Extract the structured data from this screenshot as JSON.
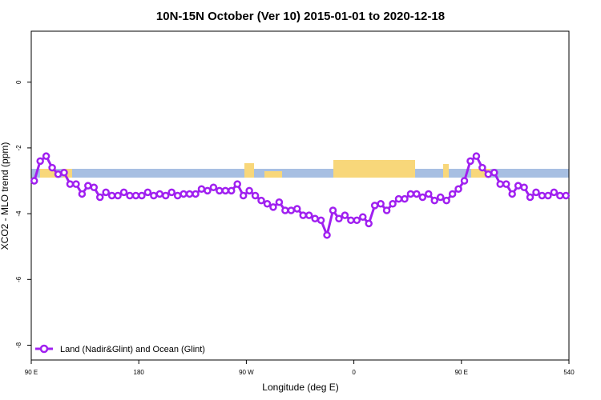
{
  "chart_data": {
    "type": "line",
    "title": "10N-15N October (Ver 10)   2015-01-01 to 2020-12-18",
    "x_label": "Longitude (deg E)",
    "y_label": "XCO2 - MLO trend (ppm)",
    "x": [
      92.5,
      97.5,
      102.5,
      107.5,
      112.5,
      117.5,
      122.5,
      127.5,
      132.5,
      137.5,
      142.5,
      147.5,
      152.5,
      157.5,
      162.5,
      167.5,
      172.5,
      177.5,
      182.5,
      187.5,
      192.5,
      197.5,
      202.5,
      207.5,
      212.5,
      217.5,
      222.5,
      227.5,
      232.5,
      237.5,
      242.5,
      247.5,
      252.5,
      257.5,
      262.5,
      267.5,
      272.5,
      277.5,
      282.5,
      287.5,
      292.5,
      297.5,
      302.5,
      307.5,
      312.5,
      317.5,
      322.5,
      327.5,
      332.5,
      337.5,
      342.5,
      347.5,
      352.5,
      357.5,
      362.5,
      367.5,
      372.5,
      377.5,
      382.5,
      387.5,
      392.5,
      397.5,
      402.5,
      407.5,
      412.5,
      417.5,
      422.5,
      427.5,
      432.5,
      437.5,
      442.5,
      447.5,
      452.5,
      457.5,
      462.5,
      467.5,
      472.5,
      477.5,
      482.5,
      487.5,
      492.5,
      497.5,
      502.5,
      507.5,
      512.5,
      517.5,
      522.5,
      527.5,
      532.5,
      537.5
    ],
    "series": [
      {
        "name": "Land (Nadir&Glint) and Ocean (Glint)",
        "color": "#a020f0",
        "values": [
          -3.0,
          -2.4,
          -2.25,
          -2.6,
          -2.8,
          -2.75,
          -3.1,
          -3.1,
          -3.4,
          -3.15,
          -3.2,
          -3.5,
          -3.35,
          -3.45,
          -3.45,
          -3.35,
          -3.45,
          -3.45,
          -3.45,
          -3.35,
          -3.45,
          -3.4,
          -3.45,
          -3.35,
          -3.45,
          -3.4,
          -3.4,
          -3.4,
          -3.25,
          -3.3,
          -3.2,
          -3.3,
          -3.3,
          -3.3,
          -3.1,
          -3.45,
          -3.3,
          -3.45,
          -3.6,
          -3.7,
          -3.8,
          -3.65,
          -3.9,
          -3.9,
          -3.85,
          -4.05,
          -4.05,
          -4.15,
          -4.2,
          -4.65,
          -3.9,
          -4.15,
          -4.05,
          -4.2,
          -4.2,
          -4.1,
          -4.3,
          -3.75,
          -3.7,
          -3.9,
          -3.7,
          -3.55,
          -3.55,
          -3.4,
          -3.4,
          -3.5,
          -3.4,
          -3.6,
          -3.5,
          -3.6,
          -3.4,
          -3.25,
          -3.0,
          -2.4,
          -2.25,
          -2.6,
          -2.8,
          -2.75,
          -3.1,
          -3.1,
          -3.4,
          -3.15,
          -3.2,
          -3.5,
          -3.35,
          -3.45,
          -3.45,
          -3.35,
          -3.45,
          -3.45
        ]
      }
    ],
    "xlim": [
      90,
      540
    ],
    "xticks": [
      {
        "value": 90,
        "label": "90 E"
      },
      180,
      {
        "value": 270,
        "label": "90 W"
      },
      {
        "value": 360,
        "label": "0"
      },
      {
        "value": 450,
        "label": "90 E"
      },
      540
    ],
    "ylim": [
      -8.45,
      1.55
    ],
    "yticks": [
      -8,
      -6,
      -4,
      -2,
      0
    ],
    "legend": "bottom-left"
  }
}
